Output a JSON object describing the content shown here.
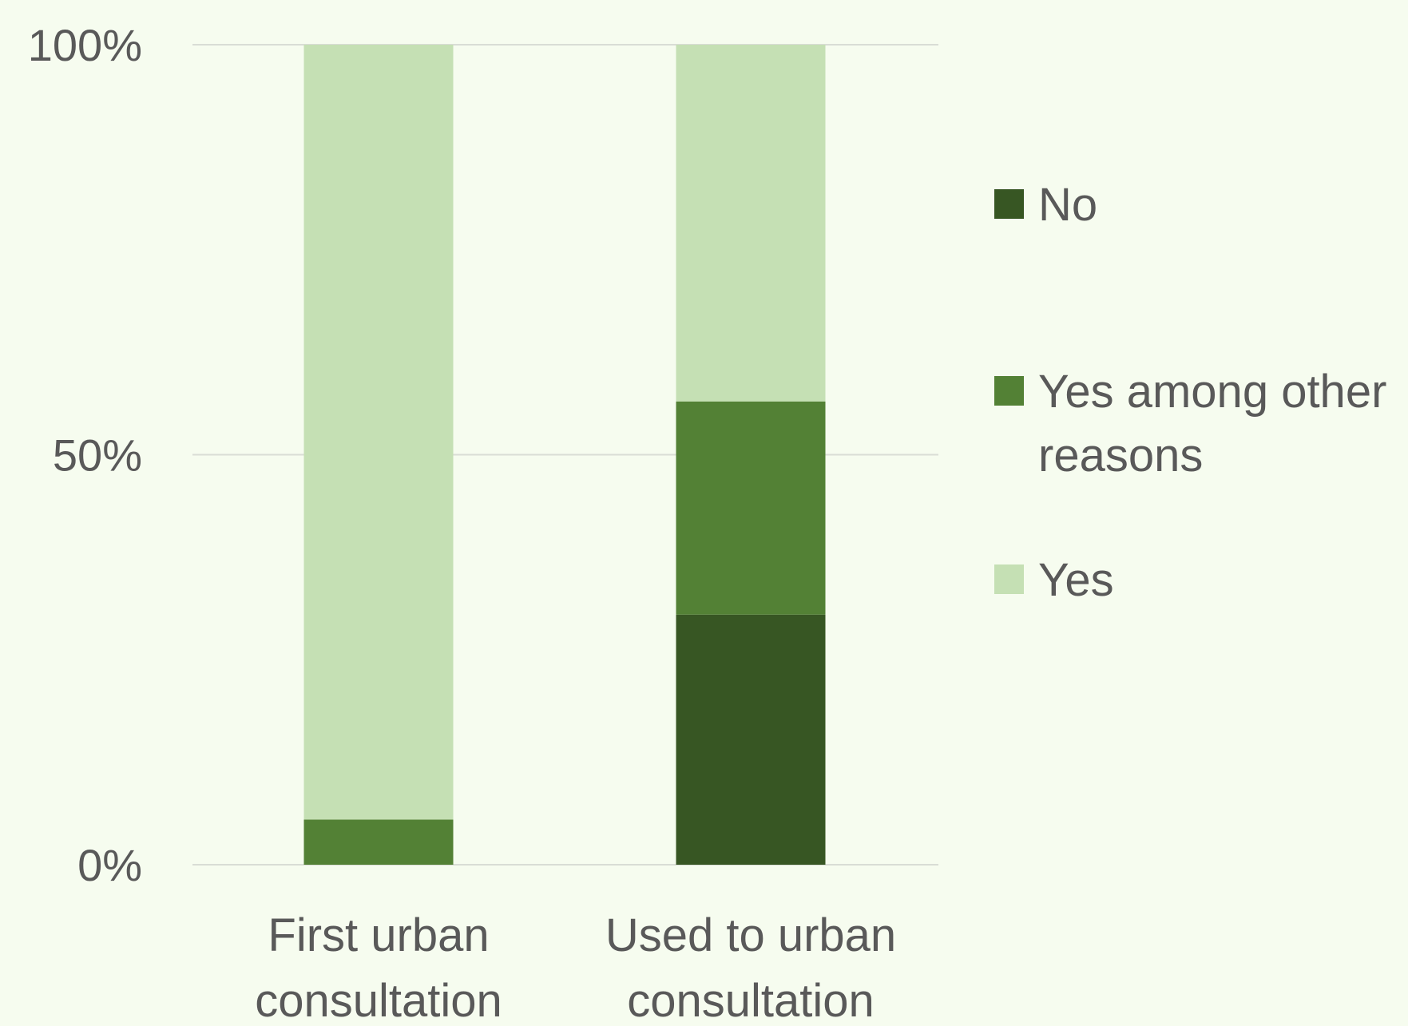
{
  "chart_data": {
    "type": "bar",
    "stacked": true,
    "percent": true,
    "title": "",
    "xlabel": "",
    "ylabel": "",
    "ylim": [
      0,
      100
    ],
    "yticks": [
      {
        "value": 0,
        "label": "0%"
      },
      {
        "value": 50,
        "label": "50%"
      },
      {
        "value": 100,
        "label": "100%"
      }
    ],
    "grid": true,
    "legend_position": "right",
    "categories": [
      {
        "lines": [
          "First urban",
          "consultation"
        ]
      },
      {
        "lines": [
          "Used to urban",
          "consultation"
        ]
      }
    ],
    "series": [
      {
        "name": "No",
        "name_lines": [
          "No"
        ],
        "color": "#375623",
        "values": [
          0,
          30.5
        ]
      },
      {
        "name": "Yes among other reasons",
        "name_lines": [
          "Yes among other",
          "reasons"
        ],
        "color": "#538135",
        "values": [
          5.5,
          26
        ]
      },
      {
        "name": "Yes",
        "name_lines": [
          "Yes"
        ],
        "color": "#c5e0b4",
        "values": [
          94.5,
          43.5
        ]
      }
    ]
  }
}
